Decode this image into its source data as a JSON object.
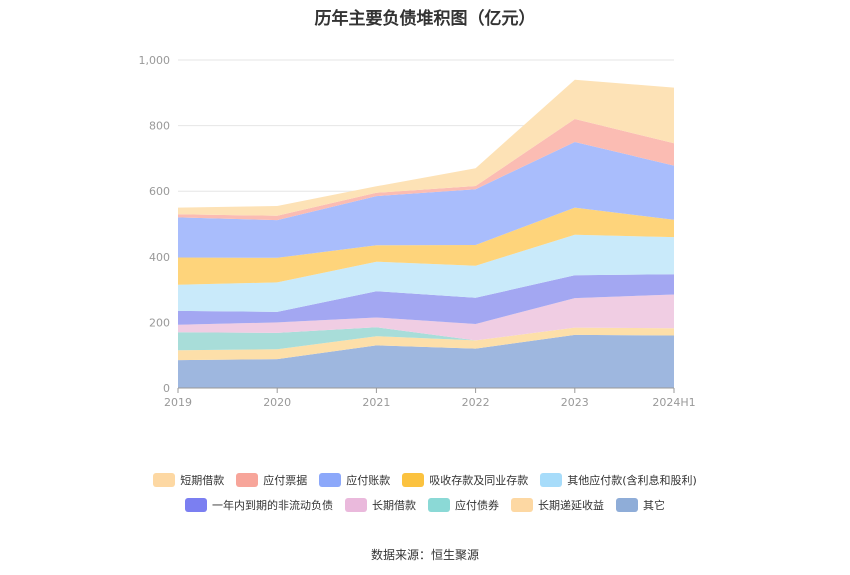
{
  "chart_data": {
    "type": "area",
    "stacked": true,
    "title": "历年主要负债堆积图（亿元）",
    "categories": [
      "2019",
      "2020",
      "2021",
      "2022",
      "2023",
      "2024H1"
    ],
    "ylim": [
      0,
      1000
    ],
    "yticks": [
      "0",
      "200",
      "400",
      "600",
      "800",
      "1,000"
    ],
    "grid": true,
    "legend_position": "bottom",
    "series": [
      {
        "name": "其它",
        "color": "#9eb7df",
        "values": [
          85,
          88,
          130,
          120,
          162,
          160
        ]
      },
      {
        "name": "长期递延收益",
        "color": "#fddfa9",
        "values": [
          30,
          30,
          28,
          25,
          22,
          22
        ]
      },
      {
        "name": "应付债券",
        "color": "#a8ddd9",
        "values": [
          55,
          50,
          27,
          0,
          0,
          0
        ]
      },
      {
        "name": "长期借款",
        "color": "#f0cde3",
        "values": [
          23,
          32,
          30,
          50,
          90,
          103
        ]
      },
      {
        "name": "一年内到期的非流动负债",
        "color": "#a3a7f2",
        "values": [
          42,
          32,
          80,
          80,
          70,
          62
        ]
      },
      {
        "name": "其他应付款(含利息和股利)",
        "color": "#c9eafa",
        "values": [
          80,
          90,
          90,
          98,
          123,
          113
        ]
      },
      {
        "name": "吸收存款及同业存款",
        "color": "#fed47b",
        "values": [
          83,
          75,
          50,
          63,
          83,
          53
        ]
      },
      {
        "name": "应付账款",
        "color": "#a9bdfc",
        "values": [
          122,
          115,
          150,
          170,
          200,
          165
        ]
      },
      {
        "name": "应付票据",
        "color": "#fbbcb3",
        "values": [
          10,
          13,
          10,
          10,
          70,
          68
        ]
      },
      {
        "name": "短期借款",
        "color": "#fde2b6",
        "values": [
          20,
          30,
          20,
          54,
          120,
          170
        ]
      }
    ],
    "legend_rows": [
      [
        {
          "name": "短期借款",
          "color": "#fdd8a3"
        },
        {
          "name": "应付票据",
          "color": "#f7a59a"
        },
        {
          "name": "应付账款",
          "color": "#8ca8fa"
        },
        {
          "name": "吸收存款及同业存款",
          "color": "#fbc23f"
        },
        {
          "name": "其他应付款(含利息和股利)",
          "color": "#a7dcfa"
        }
      ],
      [
        {
          "name": "一年内到期的非流动负债",
          "color": "#7b7ff1"
        },
        {
          "name": "长期借款",
          "color": "#eab9dc"
        },
        {
          "name": "应付债券",
          "color": "#8bd9d6"
        },
        {
          "name": "长期递延收益",
          "color": "#fdd8a3"
        },
        {
          "name": "其它",
          "color": "#8fadd8"
        }
      ]
    ]
  },
  "source": "数据来源：恒生聚源"
}
